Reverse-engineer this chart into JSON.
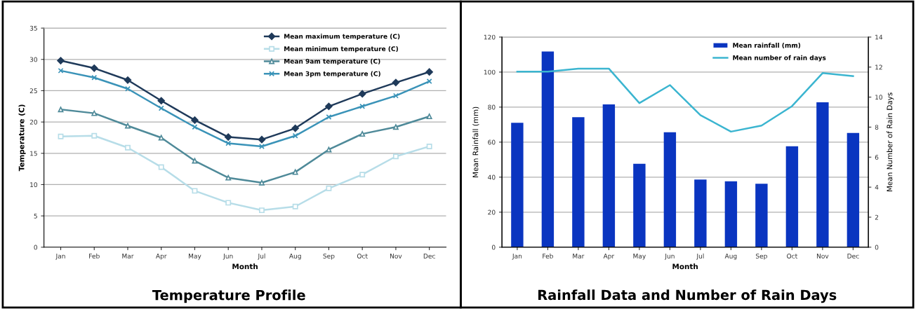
{
  "chart_data": [
    {
      "type": "line",
      "title": "Temperature Profile",
      "xlabel": "Month",
      "ylabel": "Temperature (C)",
      "categories": [
        "Jan",
        "Feb",
        "Mar",
        "Apr",
        "May",
        "Jun",
        "Jul",
        "Aug",
        "Sep",
        "Oct",
        "Nov",
        "Dec"
      ],
      "series": [
        {
          "name": "Mean maximum temperature (C)",
          "color": "#1f3a5a",
          "marker": "diamond",
          "values": [
            29.8,
            28.6,
            26.7,
            23.4,
            20.3,
            17.6,
            17.2,
            19.0,
            22.5,
            24.5,
            26.3,
            28.0
          ]
        },
        {
          "name": "Mean minimum temperature (C)",
          "color": "#b7dde8",
          "marker": "square",
          "values": [
            17.7,
            17.8,
            15.9,
            12.8,
            9.0,
            7.1,
            5.9,
            6.5,
            9.4,
            11.6,
            14.5,
            16.1
          ]
        },
        {
          "name": "Mean 9am temperature (C)",
          "color": "#4f8a99",
          "marker": "triangle",
          "values": [
            22.0,
            21.4,
            19.4,
            17.5,
            13.8,
            11.1,
            10.3,
            12.0,
            15.6,
            18.1,
            19.2,
            20.9
          ]
        },
        {
          "name": "Mean 3pm temperature (C)",
          "color": "#3a93b8",
          "marker": "cross",
          "values": [
            28.2,
            27.1,
            25.3,
            22.2,
            19.2,
            16.6,
            16.1,
            17.8,
            20.8,
            22.5,
            24.2,
            26.5
          ]
        }
      ],
      "ylim": [
        0,
        35
      ],
      "yticks": [
        0,
        5,
        10,
        15,
        20,
        25,
        30,
        35
      ],
      "grid": "y",
      "legend": "top right"
    },
    {
      "type": "bar",
      "title": "Rainfall Data and Number of Rain Days",
      "xlabel": "Month",
      "ylabel": "Mean Rainfall (mm)",
      "y2label": "Mean Number of Rain Days",
      "categories": [
        "Jan",
        "Feb",
        "Mar",
        "Apr",
        "May",
        "Jun",
        "Jul",
        "Aug",
        "Sep",
        "Oct",
        "Nov",
        "Dec"
      ],
      "series": [
        {
          "name": "Mean rainfall (mm)",
          "color": "#0a35c0",
          "values": [
            71,
            111.8,
            74.2,
            81.6,
            47.6,
            65.6,
            38.6,
            37.6,
            36.2,
            57.6,
            82.8,
            65.2
          ]
        },
        {
          "name": "Mean number of rain days",
          "type": "line",
          "axis": "y2",
          "color": "#3bb5d0",
          "values": [
            11.7,
            11.7,
            11.9,
            11.9,
            9.6,
            10.8,
            8.8,
            7.7,
            8.1,
            9.4,
            11.6,
            11.4
          ]
        }
      ],
      "ylim": [
        0,
        120
      ],
      "yticks": [
        0,
        20,
        40,
        60,
        80,
        100,
        120
      ],
      "y2lim": [
        0,
        14
      ],
      "y2ticks": [
        0,
        2,
        4,
        6,
        8,
        10,
        12,
        14
      ],
      "grid": "y",
      "legend": "top right"
    }
  ]
}
